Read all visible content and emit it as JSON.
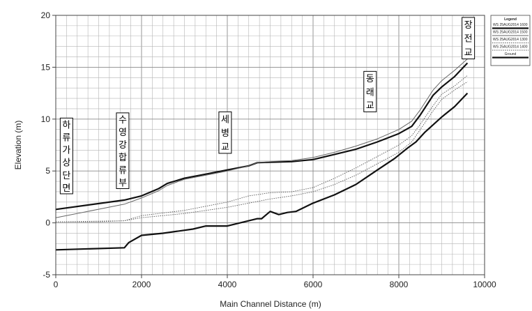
{
  "chart_data": {
    "type": "line",
    "xlabel": "Main Channel Distance (m)",
    "ylabel": "Elevation (m)",
    "xlim": [
      0,
      10000
    ],
    "ylim": [
      -5,
      20
    ],
    "xticks": [
      "0",
      "2000",
      "4000",
      "6000",
      "8000",
      "10000"
    ],
    "yticks": [
      "-5",
      "0",
      "5",
      "10",
      "15",
      "20"
    ],
    "grid": true,
    "legend": {
      "title": "Legend",
      "placement": "top-right",
      "entries": [
        "WS 25AUG2014 1600",
        "WS 25AUG2014 1500",
        "WS 25AUG2014 1300",
        "WS 25AUG2014 1400",
        "Ground"
      ]
    },
    "series": [
      {
        "name": "WS 25AUG2014 1600",
        "style": "thick",
        "x": [
          0,
          1600,
          2000,
          2400,
          2600,
          3000,
          3500,
          4000,
          4500,
          4700,
          5000,
          5500,
          6000,
          6500,
          7000,
          7500,
          8000,
          8300,
          8500,
          8800,
          9000,
          9300,
          9600
        ],
        "y": [
          1.3,
          2.2,
          2.6,
          3.3,
          3.8,
          4.3,
          4.7,
          5.1,
          5.5,
          5.8,
          5.85,
          5.9,
          6.1,
          6.6,
          7.1,
          7.8,
          8.6,
          9.3,
          10.4,
          12.3,
          13.1,
          14.1,
          15.4
        ]
      },
      {
        "name": "WS 25AUG2014 1500",
        "style": "thin",
        "x": [
          0,
          1600,
          2000,
          2400,
          2600,
          3000,
          3500,
          4000,
          4500,
          4700,
          5000,
          5500,
          6000,
          6500,
          7000,
          7500,
          8000,
          8300,
          8500,
          8800,
          9000,
          9300,
          9600
        ],
        "y": [
          0.5,
          1.8,
          2.4,
          3.1,
          3.6,
          4.2,
          4.6,
          5.0,
          5.5,
          5.8,
          5.9,
          6.0,
          6.3,
          6.8,
          7.4,
          8.1,
          9.0,
          9.8,
          10.9,
          12.8,
          13.7,
          14.7,
          15.8
        ]
      },
      {
        "name": "WS 25AUG2014 1300",
        "style": "dotted",
        "x": [
          0,
          1000,
          1600,
          2000,
          3000,
          4000,
          4500,
          5000,
          5500,
          6000,
          6500,
          7000,
          7500,
          8000,
          8300,
          8500,
          8800,
          9000,
          9300,
          9600
        ],
        "y": [
          0.1,
          0.1,
          0.2,
          0.7,
          1.2,
          2.0,
          2.6,
          2.9,
          3.0,
          3.4,
          4.3,
          5.3,
          6.4,
          7.5,
          8.4,
          9.5,
          11.3,
          12.4,
          13.2,
          14.2
        ]
      },
      {
        "name": "WS 25AUG2014 1400",
        "style": "dotted",
        "x": [
          0,
          1600,
          2000,
          3000,
          4000,
          4500,
          5000,
          5500,
          6000,
          6500,
          7000,
          7500,
          8000,
          8300,
          8500,
          8800,
          9000,
          9300,
          9600
        ],
        "y": [
          0.1,
          0.2,
          0.5,
          0.9,
          1.5,
          1.9,
          2.3,
          2.6,
          3.0,
          3.7,
          4.6,
          5.7,
          6.8,
          7.8,
          9.0,
          10.8,
          11.9,
          12.8,
          13.6
        ]
      },
      {
        "name": "Ground",
        "style": "thick",
        "x": [
          0,
          1600,
          1700,
          2000,
          2500,
          3200,
          3500,
          4000,
          4700,
          4800,
          5000,
          5200,
          5400,
          5600,
          6000,
          6500,
          7000,
          7500,
          7900,
          8200,
          8400,
          8600,
          9000,
          9300,
          9600
        ],
        "y": [
          -2.6,
          -2.4,
          -1.9,
          -1.2,
          -1.0,
          -0.6,
          -0.3,
          -0.3,
          0.4,
          0.4,
          1.1,
          0.8,
          1.0,
          1.1,
          1.9,
          2.7,
          3.7,
          5.1,
          6.2,
          7.2,
          7.8,
          8.7,
          10.2,
          11.2,
          12.5
        ]
      }
    ],
    "annotations": [
      {
        "label": "하류가상단면",
        "x": 250,
        "y_top": 10.1,
        "y_bottom": 2.8
      },
      {
        "label": "수영강합류부",
        "x": 1560,
        "y_top": 10.6,
        "y_bottom": 3.3
      },
      {
        "label": "세병교",
        "x": 3950,
        "y_top": 10.7,
        "y_bottom": 6.7
      },
      {
        "label": "동래교",
        "x": 7330,
        "y_top": 14.6,
        "y_bottom": 10.7
      },
      {
        "label": "장전교",
        "x": 9620,
        "y_top": 19.8,
        "y_bottom": 15.8
      }
    ]
  }
}
